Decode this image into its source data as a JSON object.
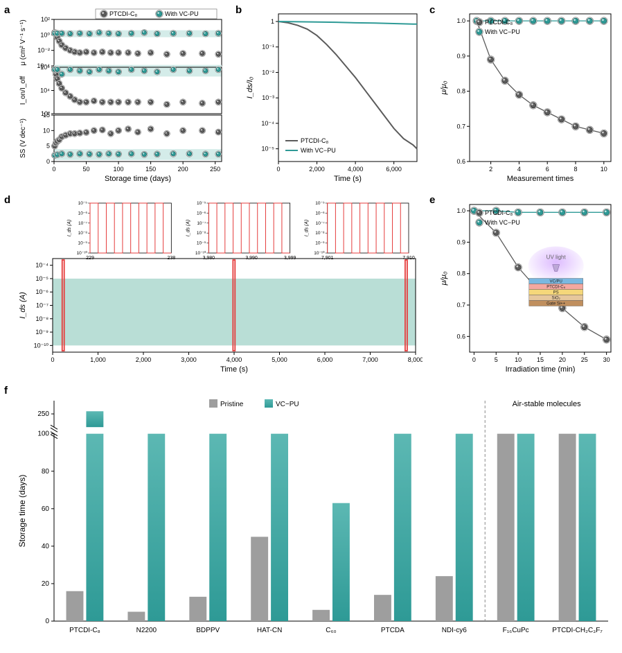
{
  "colors": {
    "ptcdi": "#5b5b5b",
    "vcpu": "#2e9a96",
    "vcpu_light": "#7fc4c0",
    "band": "#d4ece9",
    "grid": "#cccccc",
    "axis": "#000000",
    "red": "#e53c3c",
    "bar_gray": "#9e9e9e",
    "bar_teal_top": "#5cb8b3",
    "bar_teal_bot": "#2e9a96"
  },
  "panelA": {
    "label": "a",
    "xlabel": "Storage time (days)",
    "xlim": [
      0,
      260
    ],
    "xticks": [
      0,
      50,
      100,
      150,
      200,
      250
    ],
    "legend": {
      "ptcdi": "PTCDI-C₈",
      "vcpu": "With VC-PU"
    },
    "sub1": {
      "ylabel": "μ (cm² V⁻¹ s⁻¹)",
      "yticks": [
        -4,
        -2,
        0,
        2
      ],
      "ytick_labels": [
        "10⁻⁴",
        "10⁻²",
        "10⁰",
        "10²"
      ],
      "band": [
        -0.3,
        0.6
      ],
      "ptcdi_x": [
        1,
        3,
        5,
        8,
        12,
        18,
        25,
        32,
        40,
        50,
        62,
        75,
        88,
        100,
        115,
        130,
        150,
        175,
        200,
        230,
        255
      ],
      "ptcdi_y": [
        0.3,
        0.1,
        -0.3,
        -0.8,
        -1.3,
        -1.7,
        -2.0,
        -2.2,
        -2.3,
        -2.2,
        -2.3,
        -2.2,
        -2.3,
        -2.3,
        -2.3,
        -2.4,
        -2.3,
        -2.5,
        -2.4,
        -2.4,
        -2.5
      ],
      "vcpu_x": [
        1,
        5,
        12,
        25,
        40,
        55,
        70,
        85,
        100,
        120,
        140,
        160,
        185,
        210,
        235,
        255
      ],
      "vcpu_y": [
        0.2,
        0.2,
        0.2,
        0.15,
        0.2,
        0.15,
        0.3,
        0.2,
        0.15,
        0.2,
        0.3,
        0.15,
        0.2,
        0.2,
        0.15,
        0.2
      ]
    },
    "sub2": {
      "ylabel": "I_on/I_off",
      "yticks": [
        2,
        4,
        6
      ],
      "ytick_labels": [
        "10²",
        "10⁴",
        "10⁶"
      ],
      "band": [
        5.2,
        6.2
      ],
      "ptcdi_x": [
        1,
        3,
        5,
        8,
        12,
        18,
        25,
        32,
        40,
        50,
        62,
        75,
        88,
        100,
        115,
        130,
        150,
        175,
        200,
        230,
        255
      ],
      "ptcdi_y": [
        5.8,
        5.4,
        5.0,
        4.6,
        4.2,
        3.8,
        3.5,
        3.2,
        3.0,
        3.0,
        3.1,
        3.0,
        3.0,
        3.0,
        3.0,
        3.0,
        3.0,
        2.8,
        3.0,
        2.9,
        3.0
      ],
      "vcpu_x": [
        1,
        5,
        12,
        25,
        40,
        55,
        70,
        85,
        100,
        120,
        140,
        160,
        185,
        210,
        235,
        255
      ],
      "vcpu_y": [
        5.8,
        5.8,
        5.4,
        5.8,
        5.7,
        5.6,
        5.8,
        5.7,
        5.6,
        5.8,
        5.7,
        5.6,
        5.8,
        5.7,
        5.7,
        5.8
      ]
    },
    "sub3": {
      "ylabel": "SS (V dec⁻¹)",
      "yticks": [
        0,
        5,
        10,
        15
      ],
      "ytick_labels": [
        "0",
        "5",
        "10",
        "15"
      ],
      "band": [
        0.5,
        4.0
      ],
      "ptcdi_x": [
        1,
        3,
        5,
        8,
        12,
        18,
        25,
        32,
        40,
        50,
        62,
        75,
        88,
        100,
        115,
        130,
        150,
        175,
        200,
        230,
        255
      ],
      "ptcdi_y": [
        5,
        6,
        6.5,
        7,
        8,
        8.5,
        9,
        9,
        9.2,
        9.4,
        10,
        10.2,
        9,
        10,
        10.5,
        9.5,
        10.5,
        9,
        10,
        10,
        9.5
      ],
      "vcpu_x": [
        1,
        5,
        12,
        25,
        40,
        55,
        70,
        85,
        100,
        120,
        140,
        160,
        185,
        210,
        235,
        255
      ],
      "vcpu_y": [
        2,
        2.2,
        2.5,
        2.3,
        2.5,
        2.4,
        2.3,
        2.5,
        2.4,
        2.5,
        2.3,
        2.4,
        2.5,
        2.5,
        2.4,
        2.4
      ]
    }
  },
  "panelB": {
    "label": "b",
    "xlabel": "Time (s)",
    "ylabel": "I_ds/I₀",
    "xlim": [
      0,
      7200
    ],
    "xticks": [
      0,
      2000,
      4000,
      6000
    ],
    "ylim": [
      -5.5,
      0.3
    ],
    "yticks": [
      -5,
      -4,
      -3,
      -2,
      -1,
      0
    ],
    "ytick_labels": [
      "10⁻⁵",
      "10⁻⁴",
      "10⁻³",
      "10⁻²",
      "10⁻¹",
      "1"
    ],
    "legend": {
      "ptcdi": "PTCDI-C₈",
      "vcpu": "With VC−PU"
    },
    "ptcdi": {
      "x": [
        0,
        500,
        1000,
        1500,
        2000,
        2500,
        3000,
        3500,
        4000,
        4500,
        5000,
        5500,
        6000,
        6500,
        7000,
        7200
      ],
      "y": [
        0,
        -0.05,
        -0.15,
        -0.3,
        -0.55,
        -0.9,
        -1.3,
        -1.75,
        -2.2,
        -2.7,
        -3.2,
        -3.7,
        -4.2,
        -4.6,
        -4.85,
        -5.0
      ]
    },
    "vcpu": {
      "x": [
        0,
        1000,
        2000,
        3000,
        3500,
        4000,
        5000,
        6000,
        7000,
        7200
      ],
      "y": [
        0,
        -0.01,
        -0.02,
        -0.03,
        -0.04,
        -0.05,
        -0.06,
        -0.08,
        -0.1,
        -0.1
      ]
    }
  },
  "panelC": {
    "label": "c",
    "xlabel": "Measurement times",
    "ylabel": "μ/μ₀",
    "xlim": [
      0.5,
      10.5
    ],
    "xticks": [
      2,
      4,
      6,
      8,
      10
    ],
    "ylim": [
      0.6,
      1.02
    ],
    "yticks": [
      0.6,
      0.7,
      0.8,
      0.9,
      1.0
    ],
    "legend": {
      "ptcdi": "PTCDI-C₈",
      "vcpu": "With VC−PU"
    },
    "ptcdi": {
      "x": [
        1,
        2,
        3,
        4,
        5,
        6,
        7,
        8,
        9,
        10
      ],
      "y": [
        1.0,
        0.89,
        0.83,
        0.79,
        0.76,
        0.74,
        0.72,
        0.7,
        0.69,
        0.68
      ]
    },
    "vcpu": {
      "x": [
        1,
        2,
        3,
        4,
        5,
        6,
        7,
        8,
        9,
        10
      ],
      "y": [
        1.0,
        1.0,
        1.0,
        1.0,
        1.0,
        1.0,
        1.0,
        1.0,
        1.0,
        1.0
      ]
    }
  },
  "panelD": {
    "label": "d",
    "xlabel": "Time (s)",
    "ylabel": "I_ds (A)",
    "xlim": [
      0,
      8000
    ],
    "xticks": [
      0,
      1000,
      2000,
      3000,
      4000,
      5000,
      6000,
      7000,
      8000
    ],
    "ylim": [
      -10.5,
      -3.5
    ],
    "yticks": [
      -10,
      -9,
      -8,
      -7,
      -6,
      -5,
      -4
    ],
    "ytick_labels": [
      "10⁻¹⁰",
      "10⁻⁹",
      "10⁻⁸",
      "10⁻⁷",
      "10⁻⁶",
      "10⁻⁵",
      "10⁻⁴"
    ],
    "red_boxes": [
      [
        210,
        255
      ],
      [
        3975,
        4020
      ],
      [
        7770,
        7815
      ]
    ],
    "insets": [
      {
        "xrange": [
          229,
          238
        ],
        "xticks": [
          229,
          238
        ],
        "ylabel": "I_ds (A)",
        "yticks": [
          -10,
          -9,
          -8,
          -7,
          -6,
          -5
        ],
        "ytick_labels": [
          "10⁻¹⁰",
          "10⁻⁹",
          "10⁻⁸",
          "10⁻⁷",
          "10⁻⁶",
          "10⁻⁵"
        ]
      },
      {
        "xrange": [
          3980,
          3999
        ],
        "xticks": [
          3980,
          3990,
          3999
        ],
        "ylabel": "I_ds (A)",
        "yticks": [
          -10,
          -9,
          -8,
          -7,
          -6,
          -5
        ],
        "ytick_labels": [
          "10⁻¹⁰",
          "10⁻⁹",
          "10⁻⁸",
          "10⁻⁷",
          "10⁻⁶",
          "10⁻⁵"
        ]
      },
      {
        "xrange": [
          7901,
          7910
        ],
        "xticks": [
          7901,
          7910
        ],
        "ylabel": "I_ds (A)",
        "yticks": [
          -10,
          -9,
          -8,
          -7,
          -6,
          -5
        ],
        "ytick_labels": [
          "10⁻¹⁰",
          "10⁻⁹",
          "10⁻⁸",
          "10⁻⁷",
          "10⁻⁶",
          "10⁻⁵"
        ]
      }
    ]
  },
  "panelE": {
    "label": "e",
    "xlabel": "Irradiation time (min)",
    "ylabel": "μ/μ₀",
    "xlim": [
      -1,
      31
    ],
    "xticks": [
      0,
      5,
      10,
      15,
      20,
      25,
      30
    ],
    "ylim": [
      0.55,
      1.02
    ],
    "yticks": [
      0.6,
      0.7,
      0.8,
      0.9,
      1.0
    ],
    "legend": {
      "ptcdi": "PTCDI-C₈",
      "vcpu": "With VC−PU"
    },
    "ptcdi": {
      "x": [
        0,
        5,
        10,
        15,
        20,
        25,
        30
      ],
      "y": [
        1.0,
        0.93,
        0.82,
        0.74,
        0.69,
        0.63,
        0.59
      ]
    },
    "vcpu": {
      "x": [
        0,
        5,
        10,
        15,
        20,
        25,
        30
      ],
      "y": [
        1.0,
        1.0,
        0.995,
        0.995,
        0.995,
        0.995,
        0.995
      ]
    },
    "inset_label": "UV light",
    "stack": [
      "VC/PU",
      "PTCDI-C₈",
      "PS",
      "SiO₂",
      "Gate Si++"
    ],
    "stack_colors": [
      "#7ab8e0",
      "#f4a8a0",
      "#f5d77a",
      "#e6c79c",
      "#c08f5e"
    ]
  },
  "panelF": {
    "label": "f",
    "xlabel_cats": [
      "PTCDI-C₈",
      "N2200",
      "BDPPV",
      "HAT-CN",
      "C₆₀",
      "PTCDA",
      "NDI-cy6",
      "F₁₆CuPc",
      "PTCDI-CH₂C₃F₇"
    ],
    "ylabel": "Storage time (days)",
    "break_note": "Air-stable molecules",
    "legend": {
      "pristine": "Pristine",
      "vcpu": "VC−PU"
    },
    "ylim_lower": [
      0,
      100
    ],
    "ylim_upper": [
      240,
      260
    ],
    "yticks_lower": [
      0,
      20,
      40,
      60,
      80,
      100
    ],
    "yticks_upper": [
      250
    ],
    "pristine": [
      16,
      5,
      13,
      45,
      6,
      14,
      24,
      100,
      100
    ],
    "vcpu": [
      252,
      100,
      100,
      100,
      63,
      100,
      100,
      100,
      100
    ]
  }
}
